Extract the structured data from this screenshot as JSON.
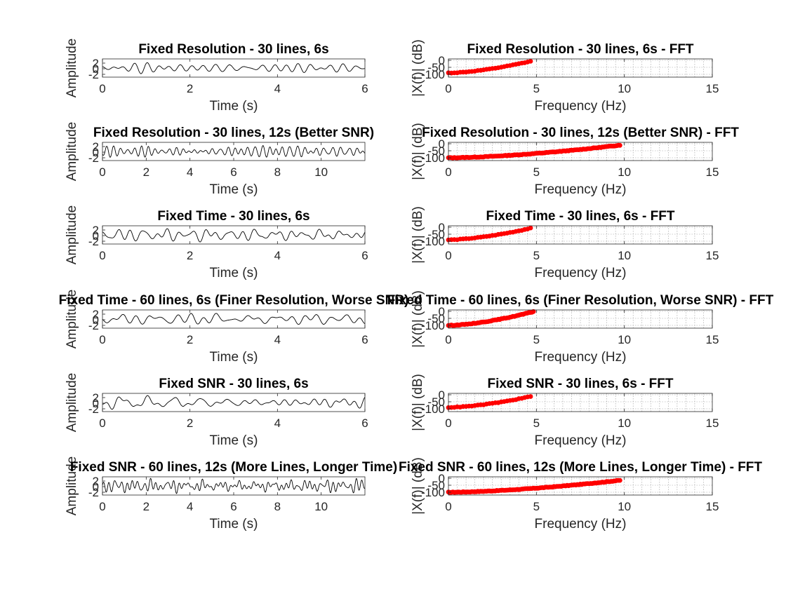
{
  "figure": {
    "background": "#ffffff",
    "time_trace_color": "#000000",
    "fft_marker_color": "#ff0000"
  },
  "chart_data": [
    {
      "type": "line",
      "panel": "time",
      "duration": 6,
      "seed": 1,
      "title": "Fixed Resolution - 30 lines, 6s",
      "xlabel": "Time (s)",
      "ylabel": "Amplitude",
      "xlim": [
        0,
        6
      ],
      "ylim": [
        -3,
        3.5
      ],
      "xticks": [
        0,
        2,
        4,
        6
      ],
      "yticks": [
        -2,
        0,
        2
      ],
      "grid": false
    },
    {
      "type": "scatter",
      "panel": "fft",
      "seed": 1,
      "title": "Fixed Resolution - 30 lines, 6s - FFT",
      "xlabel": "Frequency (Hz)",
      "ylabel": "|X(f)| (dB)",
      "xlim": [
        0,
        15
      ],
      "ylim": [
        -120,
        10
      ],
      "xticks": [
        0,
        5,
        10,
        15
      ],
      "yticks": [
        -100,
        -50,
        0
      ],
      "grid": true,
      "freq_max": 4.75,
      "freq_step": 0.1667,
      "db_start": -90,
      "db_end": -5
    },
    {
      "type": "line",
      "panel": "time",
      "duration": 12,
      "seed": 2,
      "title": "Fixed Resolution - 30 lines, 12s (Better SNR)",
      "xlabel": "Time (s)",
      "ylabel": "Amplitude",
      "xlim": [
        0,
        12
      ],
      "ylim": [
        -3,
        3.5
      ],
      "xticks": [
        0,
        2,
        4,
        6,
        8,
        10
      ],
      "yticks": [
        -2,
        0,
        2
      ],
      "grid": false
    },
    {
      "type": "scatter",
      "panel": "fft",
      "seed": 2,
      "title": "Fixed Resolution - 30 lines, 12s (Better SNR) - FFT",
      "xlabel": "Frequency (Hz)",
      "ylabel": "|X(f)| (dB)",
      "xlim": [
        0,
        15
      ],
      "ylim": [
        -120,
        10
      ],
      "xticks": [
        0,
        5,
        10,
        15
      ],
      "yticks": [
        -100,
        -50,
        0
      ],
      "grid": true,
      "freq_max": 9.75,
      "freq_step": 0.0833,
      "db_start": -100,
      "db_end": -10
    },
    {
      "type": "line",
      "panel": "time",
      "duration": 6,
      "seed": 3,
      "title": "Fixed Time - 30 lines, 6s",
      "xlabel": "Time (s)",
      "ylabel": "Amplitude",
      "xlim": [
        0,
        6
      ],
      "ylim": [
        -3,
        3.5
      ],
      "xticks": [
        0,
        2,
        4,
        6
      ],
      "yticks": [
        -2,
        0,
        2
      ],
      "grid": false
    },
    {
      "type": "scatter",
      "panel": "fft",
      "seed": 3,
      "title": "Fixed Time - 30 lines, 6s - FFT",
      "xlabel": "Frequency (Hz)",
      "ylabel": "|X(f)| (dB)",
      "xlim": [
        0,
        15
      ],
      "ylim": [
        -120,
        10
      ],
      "xticks": [
        0,
        5,
        10,
        15
      ],
      "yticks": [
        -100,
        -50,
        0
      ],
      "grid": true,
      "freq_max": 4.75,
      "freq_step": 0.1667,
      "db_start": -90,
      "db_end": -5
    },
    {
      "type": "line",
      "panel": "time",
      "duration": 6,
      "seed": 4,
      "title": "Fixed Time - 60 lines, 6s (Finer Resolution, Worse SNR)",
      "xlabel": "Time (s)",
      "ylabel": "Amplitude",
      "xlim": [
        0,
        6
      ],
      "ylim": [
        -3,
        3.5
      ],
      "xticks": [
        0,
        2,
        4,
        6
      ],
      "yticks": [
        -2,
        0,
        2
      ],
      "grid": false
    },
    {
      "type": "scatter",
      "panel": "fft",
      "seed": 4,
      "title": "Fixed Time - 60 lines, 6s (Finer Resolution, Worse SNR) - FFT",
      "xlabel": "Frequency (Hz)",
      "ylabel": "|X(f)| (dB)",
      "xlim": [
        0,
        15
      ],
      "ylim": [
        -120,
        10
      ],
      "xticks": [
        0,
        5,
        10,
        15
      ],
      "yticks": [
        -100,
        -50,
        0
      ],
      "grid": true,
      "freq_max": 4.9,
      "freq_step": 0.0833,
      "db_start": -100,
      "db_end": 0
    },
    {
      "type": "line",
      "panel": "time",
      "duration": 6,
      "seed": 5,
      "title": "Fixed SNR - 30 lines, 6s",
      "xlabel": "Time (s)",
      "ylabel": "Amplitude",
      "xlim": [
        0,
        6
      ],
      "ylim": [
        -3,
        3.5
      ],
      "xticks": [
        0,
        2,
        4,
        6
      ],
      "yticks": [
        -2,
        0,
        2
      ],
      "grid": false
    },
    {
      "type": "scatter",
      "panel": "fft",
      "seed": 5,
      "title": "Fixed SNR - 30 lines, 6s - FFT",
      "xlabel": "Frequency (Hz)",
      "ylabel": "|X(f)| (dB)",
      "xlim": [
        0,
        15
      ],
      "ylim": [
        -120,
        10
      ],
      "xticks": [
        0,
        5,
        10,
        15
      ],
      "yticks": [
        -100,
        -50,
        0
      ],
      "grid": true,
      "freq_max": 4.75,
      "freq_step": 0.1667,
      "db_start": -90,
      "db_end": -10
    },
    {
      "type": "line",
      "panel": "time",
      "duration": 12,
      "seed": 6,
      "title": "Fixed SNR - 60 lines, 12s (More Lines, Longer Time)",
      "xlabel": "Time (s)",
      "ylabel": "Amplitude",
      "xlim": [
        0,
        12
      ],
      "ylim": [
        -3,
        3.5
      ],
      "xticks": [
        0,
        2,
        4,
        6,
        8,
        10
      ],
      "yticks": [
        -2,
        0,
        2
      ],
      "grid": false
    },
    {
      "type": "scatter",
      "panel": "fft",
      "seed": 6,
      "title": "Fixed SNR - 60 lines, 12s (More Lines, Longer Time) - FFT",
      "xlabel": "Frequency (Hz)",
      "ylabel": "|X(f)| (dB)",
      "xlim": [
        0,
        15
      ],
      "ylim": [
        -120,
        10
      ],
      "xticks": [
        0,
        5,
        10,
        15
      ],
      "yticks": [
        -100,
        -50,
        0
      ],
      "grid": true,
      "freq_max": 9.75,
      "freq_step": 0.0833,
      "db_start": -100,
      "db_end": -15
    }
  ]
}
